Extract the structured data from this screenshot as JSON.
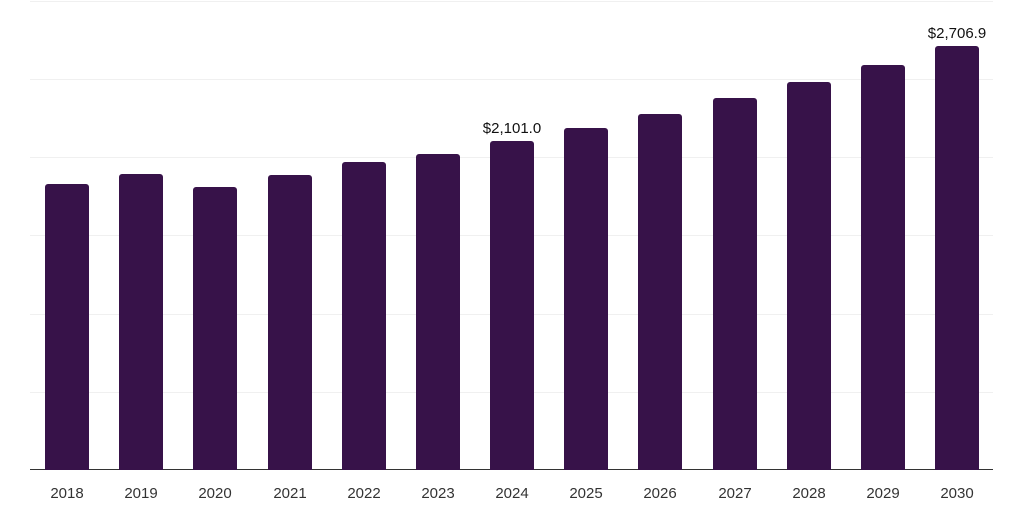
{
  "chart_data": {
    "type": "bar",
    "title": "",
    "xlabel": "",
    "ylabel": "",
    "categories": [
      "2018",
      "2019",
      "2020",
      "2021",
      "2022",
      "2023",
      "2024",
      "2025",
      "2026",
      "2027",
      "2028",
      "2029",
      "2030"
    ],
    "values": [
      1826,
      1890,
      1807,
      1884,
      1967,
      2018,
      2101.0,
      2184,
      2273,
      2376,
      2478,
      2586,
      2706.9
    ],
    "data_labels": [
      {
        "category": "2024",
        "text": "$2,101.0"
      },
      {
        "category": "2030",
        "text": "$2,706.9"
      }
    ],
    "ylim": [
      0,
      3000
    ],
    "gridlines": [
      0,
      500,
      1000,
      1500,
      2000,
      2500,
      3000
    ],
    "grid": true,
    "legend": null,
    "bar_color": "#371249"
  }
}
